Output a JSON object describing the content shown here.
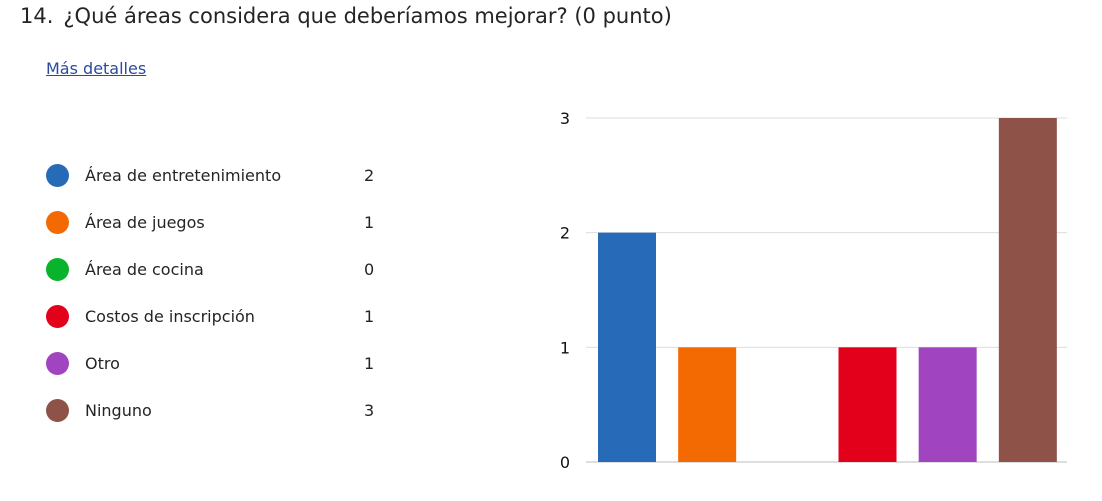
{
  "question": {
    "number": "14.",
    "text": "¿Qué áreas considera que deberíamos mejorar? (0 punto)",
    "details_link": "Más detalles"
  },
  "chart_data": {
    "type": "bar",
    "categories": [
      "Área de entretenimiento",
      "Área de juegos",
      "Área de cocina",
      "Costos de inscripción",
      "Otro",
      "Ninguno"
    ],
    "values": [
      2,
      1,
      0,
      1,
      1,
      3
    ],
    "colors": [
      "#276ab8",
      "#f46a02",
      "#09b32c",
      "#e3001b",
      "#a044c0",
      "#8e5248"
    ],
    "ylim": [
      0,
      3
    ],
    "yticks": [
      0,
      1,
      2,
      3
    ],
    "grid": true,
    "legend_placement": "left"
  }
}
